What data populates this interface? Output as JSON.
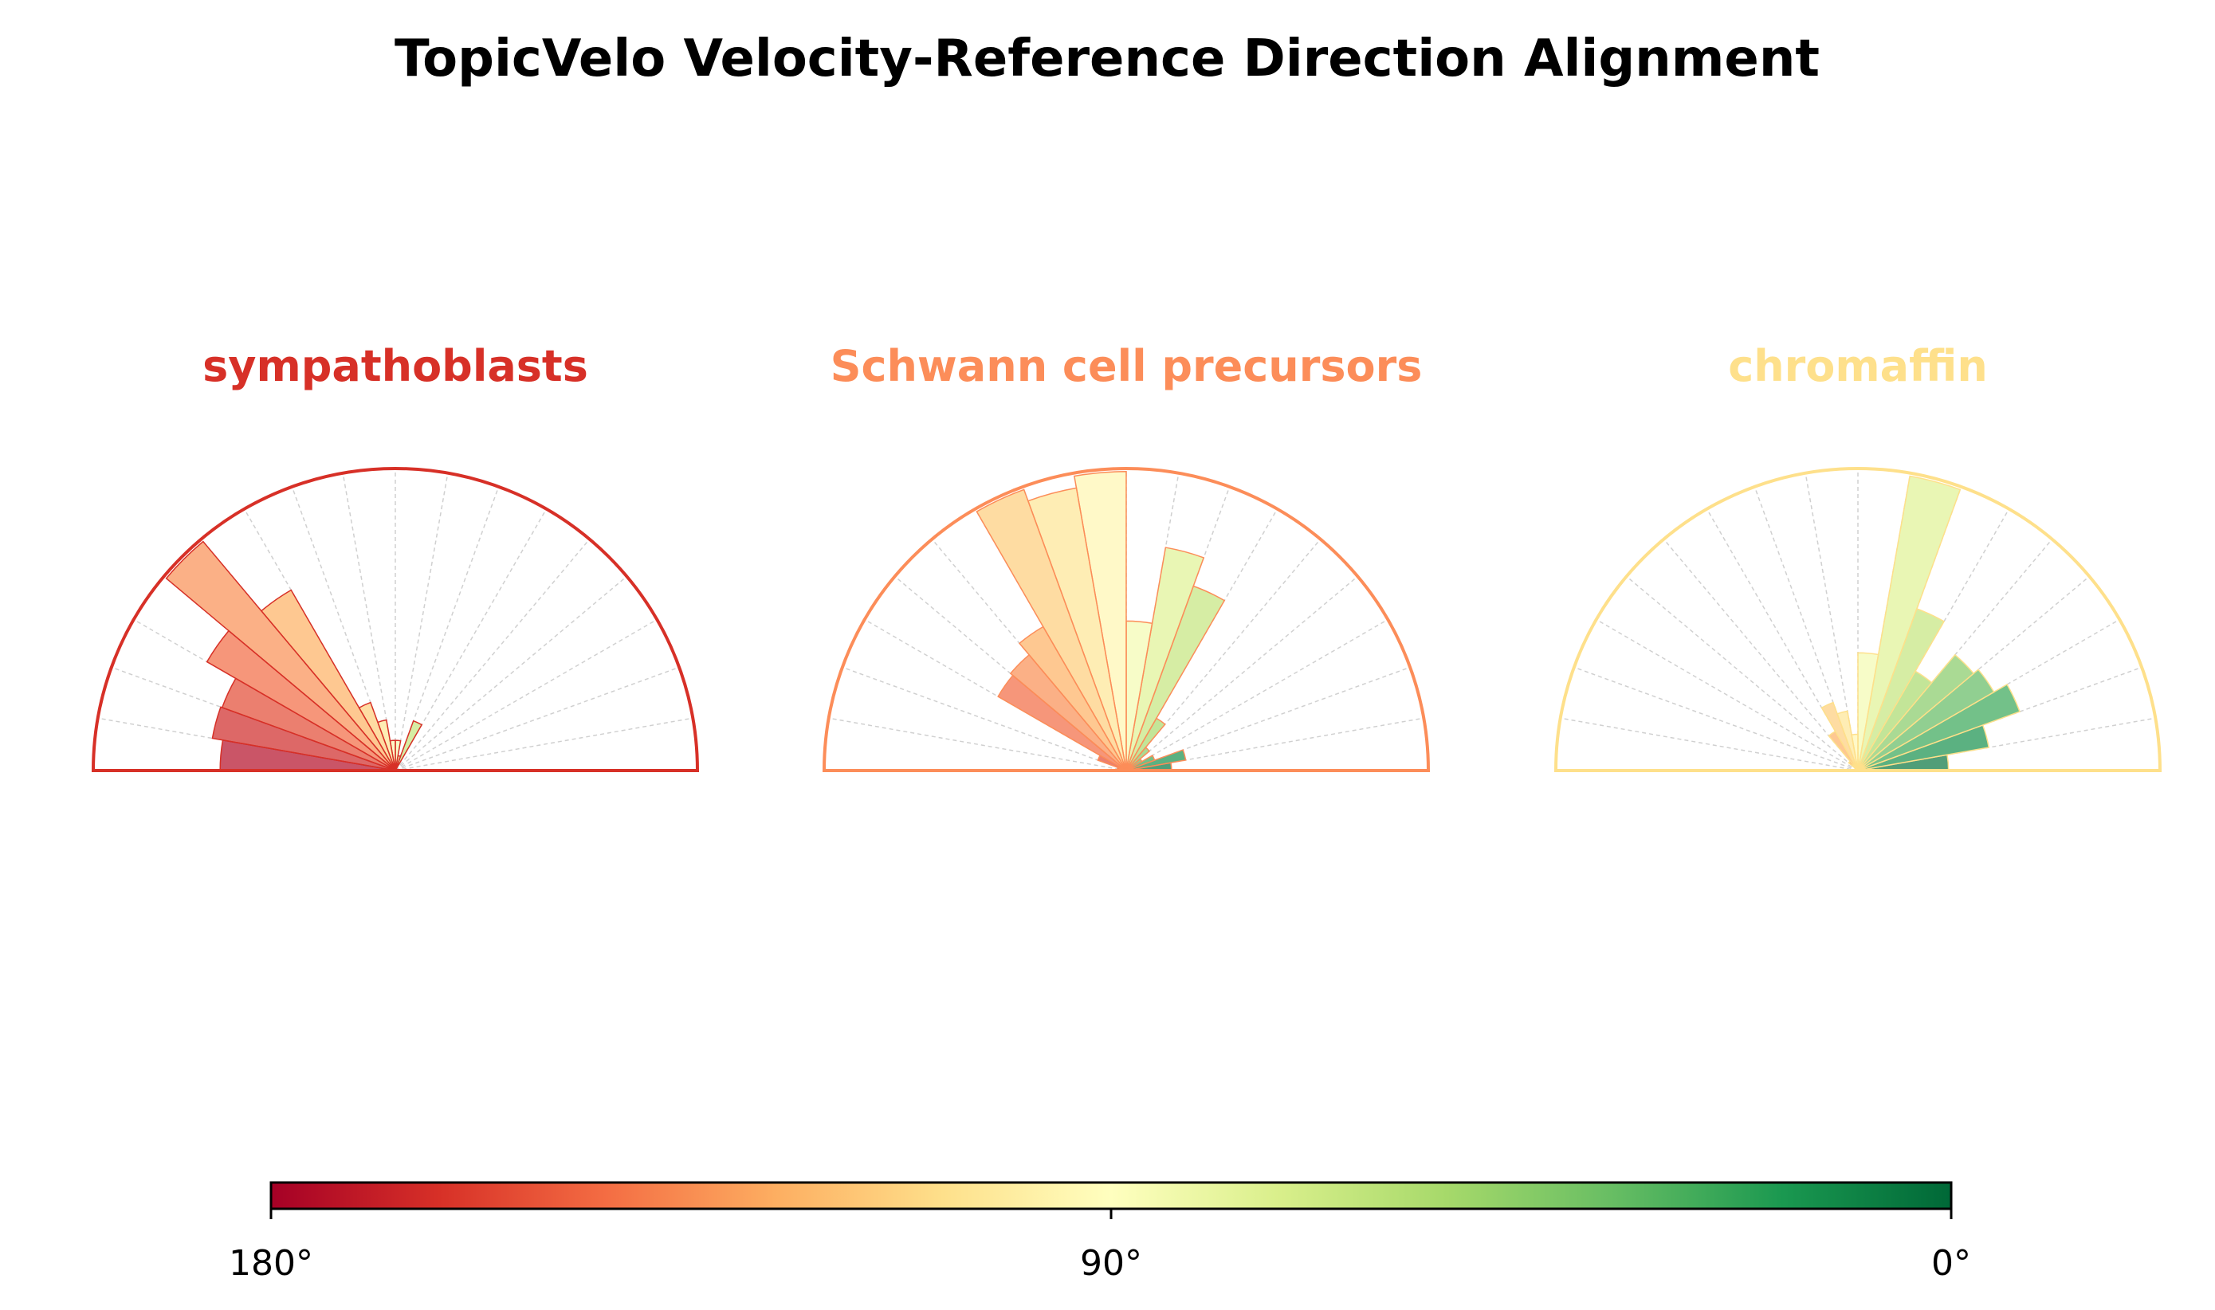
{
  "chart_data": {
    "type": "polar-bar",
    "title": "TopicVelo Velocity-Reference Direction Alignment",
    "bin_edges_deg": [
      0,
      10,
      20,
      30,
      40,
      50,
      60,
      70,
      80,
      90,
      100,
      110,
      120,
      130,
      140,
      150,
      160,
      170,
      180
    ],
    "panels": [
      {
        "name": "sympathoblasts",
        "color": "#d73027",
        "values": [
          0.02,
          0,
          0,
          0,
          0,
          0,
          0.175,
          0.05,
          0.1,
          0.1,
          0.17,
          0.24,
          0.69,
          0.99,
          0.72,
          0.61,
          0.615,
          0.58
        ]
      },
      {
        "name": "Schwann cell precursors",
        "color": "#fc8d59",
        "values": [
          0.15,
          0.2,
          0.1,
          0.06,
          0.1,
          0.2,
          0.65,
          0.75,
          0.495,
          0.99,
          0.95,
          0.99,
          0.55,
          0.5,
          0.49,
          0.1,
          0.03,
          0
        ]
      },
      {
        "name": "chromaffin",
        "color": "#fee08b",
        "values": [
          0.3,
          0.44,
          0.57,
          0.52,
          0.5,
          0.38,
          0.57,
          0.99,
          0.39,
          0.12,
          0.2,
          0.24,
          0.15,
          0.04,
          0,
          0,
          0,
          0
        ]
      }
    ],
    "colorbar": {
      "colormap": "RdYlGn",
      "range": [
        180,
        0
      ],
      "tick_labels": [
        "180°",
        "90°",
        "0°"
      ]
    }
  }
}
